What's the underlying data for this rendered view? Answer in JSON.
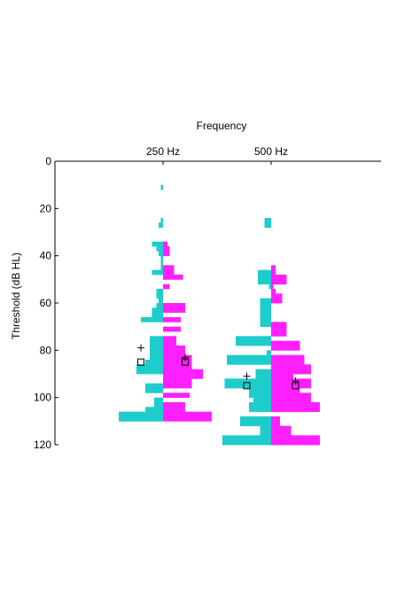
{
  "chart_data": {
    "type": "bar",
    "subtype": "back-to-back histogram",
    "x_title": "Frequency",
    "y_title": "Threshold (dB HL)",
    "categories": [
      "250 Hz",
      "500 Hz"
    ],
    "y_axis": {
      "ylim": [
        0,
        120
      ],
      "reversed": true,
      "ticks": [
        0,
        20,
        40,
        60,
        80,
        100,
        120
      ]
    },
    "colors": {
      "left": "#1fcccc",
      "right": "#ff1fff",
      "markers": "#000000"
    },
    "bin_width_db": 2,
    "groups": [
      {
        "category": "250 Hz",
        "left_color_series": [
          [
            11,
            1
          ],
          [
            25,
            1
          ],
          [
            27,
            2
          ],
          [
            35,
            5
          ],
          [
            37,
            3
          ],
          [
            39,
            2
          ],
          [
            41,
            1
          ],
          [
            43,
            1
          ],
          [
            45,
            1
          ],
          [
            47,
            5
          ],
          [
            55,
            3
          ],
          [
            57,
            3
          ],
          [
            59,
            2
          ],
          [
            61,
            3
          ],
          [
            63,
            5
          ],
          [
            65,
            5
          ],
          [
            67,
            10
          ],
          [
            75,
            6
          ],
          [
            77,
            6
          ],
          [
            79,
            6
          ],
          [
            81,
            6
          ],
          [
            83,
            6
          ],
          [
            85,
            8
          ],
          [
            87,
            12
          ],
          [
            89,
            12
          ],
          [
            95,
            8
          ],
          [
            97,
            8
          ],
          [
            101,
            4
          ],
          [
            103,
            4
          ],
          [
            105,
            8
          ],
          [
            107,
            20
          ],
          [
            109,
            20
          ]
        ],
        "right_color_series": [
          [
            35,
            2
          ],
          [
            37,
            3
          ],
          [
            39,
            3
          ],
          [
            45,
            5
          ],
          [
            47,
            5
          ],
          [
            49,
            9
          ],
          [
            53,
            3
          ],
          [
            61,
            10
          ],
          [
            63,
            10
          ],
          [
            67,
            8
          ],
          [
            71,
            8
          ],
          [
            75,
            6
          ],
          [
            77,
            6
          ],
          [
            79,
            10
          ],
          [
            81,
            10
          ],
          [
            83,
            13
          ],
          [
            85,
            13
          ],
          [
            87,
            13
          ],
          [
            89,
            18
          ],
          [
            91,
            18
          ],
          [
            93,
            13
          ],
          [
            95,
            13
          ],
          [
            99,
            12
          ],
          [
            103,
            10
          ],
          [
            105,
            10
          ],
          [
            107,
            22
          ],
          [
            109,
            22
          ]
        ],
        "markers": {
          "plus": [
            [
              -10,
              79
            ],
            [
              10,
              83
            ]
          ],
          "square": [
            [
              -10,
              85
            ],
            [
              10,
              85
            ]
          ]
        }
      },
      {
        "category": "500 Hz",
        "left_color_series": [
          [
            25,
            3
          ],
          [
            27,
            3
          ],
          [
            47,
            6
          ],
          [
            49,
            6
          ],
          [
            51,
            6
          ],
          [
            53,
            1
          ],
          [
            59,
            5
          ],
          [
            61,
            5
          ],
          [
            63,
            5
          ],
          [
            65,
            5
          ],
          [
            67,
            5
          ],
          [
            69,
            5
          ],
          [
            75,
            16
          ],
          [
            77,
            16
          ],
          [
            81,
            2
          ],
          [
            83,
            20
          ],
          [
            85,
            20
          ],
          [
            89,
            7
          ],
          [
            91,
            7
          ],
          [
            93,
            21
          ],
          [
            95,
            21
          ],
          [
            97,
            10
          ],
          [
            99,
            10
          ],
          [
            101,
            8
          ],
          [
            103,
            10
          ],
          [
            105,
            10
          ],
          [
            109,
            14
          ],
          [
            111,
            14
          ],
          [
            113,
            5
          ],
          [
            115,
            5
          ],
          [
            117,
            22
          ],
          [
            119,
            22
          ]
        ],
        "right_color_series": [
          [
            45,
            2
          ],
          [
            47,
            2
          ],
          [
            49,
            7
          ],
          [
            51,
            7
          ],
          [
            53,
            1
          ],
          [
            55,
            2
          ],
          [
            57,
            5
          ],
          [
            59,
            5
          ],
          [
            69,
            7
          ],
          [
            71,
            7
          ],
          [
            73,
            7
          ],
          [
            77,
            13
          ],
          [
            79,
            13
          ],
          [
            83,
            15
          ],
          [
            85,
            15
          ],
          [
            87,
            18
          ],
          [
            89,
            18
          ],
          [
            91,
            10
          ],
          [
            93,
            18
          ],
          [
            95,
            18
          ],
          [
            97,
            13
          ],
          [
            99,
            18
          ],
          [
            101,
            18
          ],
          [
            103,
            22
          ],
          [
            105,
            22
          ],
          [
            109,
            4
          ],
          [
            111,
            4
          ],
          [
            113,
            9
          ],
          [
            115,
            9
          ],
          [
            117,
            22
          ],
          [
            119,
            22
          ]
        ],
        "markers": {
          "plus": [
            [
              -11,
              91
            ],
            [
              11,
              93
            ]
          ],
          "square": [
            [
              -11,
              95
            ],
            [
              11,
              95
            ]
          ]
        }
      }
    ]
  }
}
